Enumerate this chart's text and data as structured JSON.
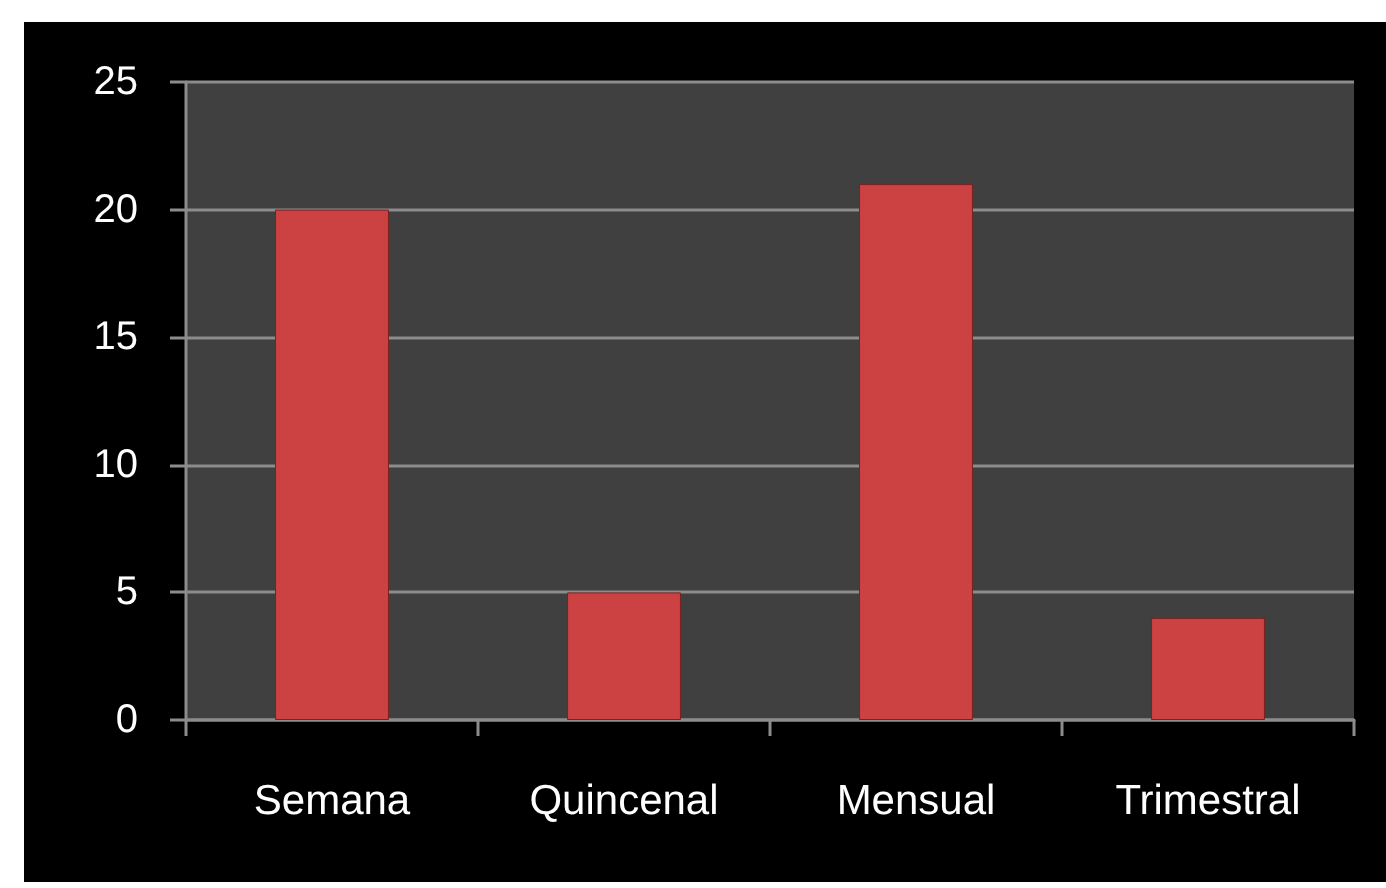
{
  "chart_data": {
    "type": "bar",
    "categories": [
      "Semana",
      "Quincenal",
      "Mensual",
      "Trimestral"
    ],
    "values": [
      20,
      5,
      21,
      4
    ],
    "color": "#cc4242",
    "ylim": [
      0,
      25
    ],
    "yticks": [
      0,
      5,
      10,
      15,
      20,
      25
    ],
    "grid": "y"
  }
}
